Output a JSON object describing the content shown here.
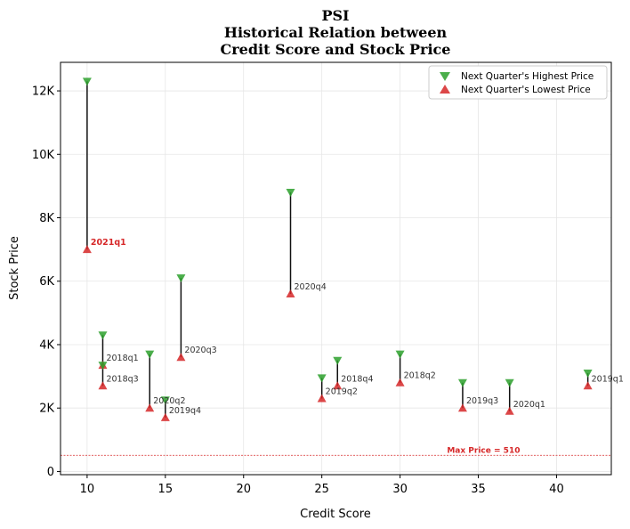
{
  "chart_data": {
    "type": "scatter",
    "title_lines": [
      "PSI",
      "Historical Relation between",
      "Credit Score and Stock Price"
    ],
    "xlabel": "Credit Score",
    "ylabel": "Stock Price",
    "xlim": [
      8.3,
      43.5
    ],
    "ylim": [
      -100,
      12900
    ],
    "x_ticks": [
      10,
      15,
      20,
      25,
      30,
      35,
      40
    ],
    "x_tick_labels": [
      "10",
      "15",
      "20",
      "25",
      "30",
      "35",
      "40"
    ],
    "y_ticks": [
      0,
      2000,
      4000,
      6000,
      8000,
      10000,
      12000
    ],
    "y_tick_labels": [
      "0",
      "2K",
      "4K",
      "6K",
      "8K",
      "10K",
      "12K"
    ],
    "grid": true,
    "legend_position": "top-right",
    "series": [
      {
        "name": "Next Quarter's Highest Price",
        "marker": "triangle-down",
        "color": "#2ca02c"
      },
      {
        "name": "Next Quarter's Lowest Price",
        "marker": "triangle-up",
        "color": "#d62728"
      }
    ],
    "points": [
      {
        "label": "2021q1",
        "x": 10,
        "high": 12300,
        "low": 7000,
        "highlight": true
      },
      {
        "label": "2018q1",
        "x": 11,
        "high": 4300,
        "low": 3350,
        "highlight": false
      },
      {
        "label": "2018q3",
        "x": 11,
        "high": 3350,
        "low": 2700,
        "highlight": false
      },
      {
        "label": "2020q2",
        "x": 14,
        "high": 3700,
        "low": 2000,
        "highlight": false
      },
      {
        "label": "2019q4",
        "x": 15,
        "high": 2250,
        "low": 1700,
        "highlight": false
      },
      {
        "label": "2020q3",
        "x": 16,
        "high": 6100,
        "low": 3600,
        "highlight": false
      },
      {
        "label": "2020q4",
        "x": 23,
        "high": 8800,
        "low": 5600,
        "highlight": false
      },
      {
        "label": "2019q2",
        "x": 25,
        "high": 2950,
        "low": 2300,
        "highlight": false
      },
      {
        "label": "2018q4",
        "x": 26,
        "high": 3500,
        "low": 2700,
        "highlight": false
      },
      {
        "label": "2018q2",
        "x": 30,
        "high": 3700,
        "low": 2800,
        "highlight": false
      },
      {
        "label": "2019q3",
        "x": 34,
        "high": 2800,
        "low": 2000,
        "highlight": false
      },
      {
        "label": "2020q1",
        "x": 37,
        "high": 2800,
        "low": 1900,
        "highlight": false
      },
      {
        "label": "2019q1",
        "x": 42,
        "high": 3100,
        "low": 2700,
        "highlight": false
      }
    ],
    "reference_line": {
      "value": 510,
      "label": "Max Price = 510",
      "color": "#d62728"
    }
  }
}
